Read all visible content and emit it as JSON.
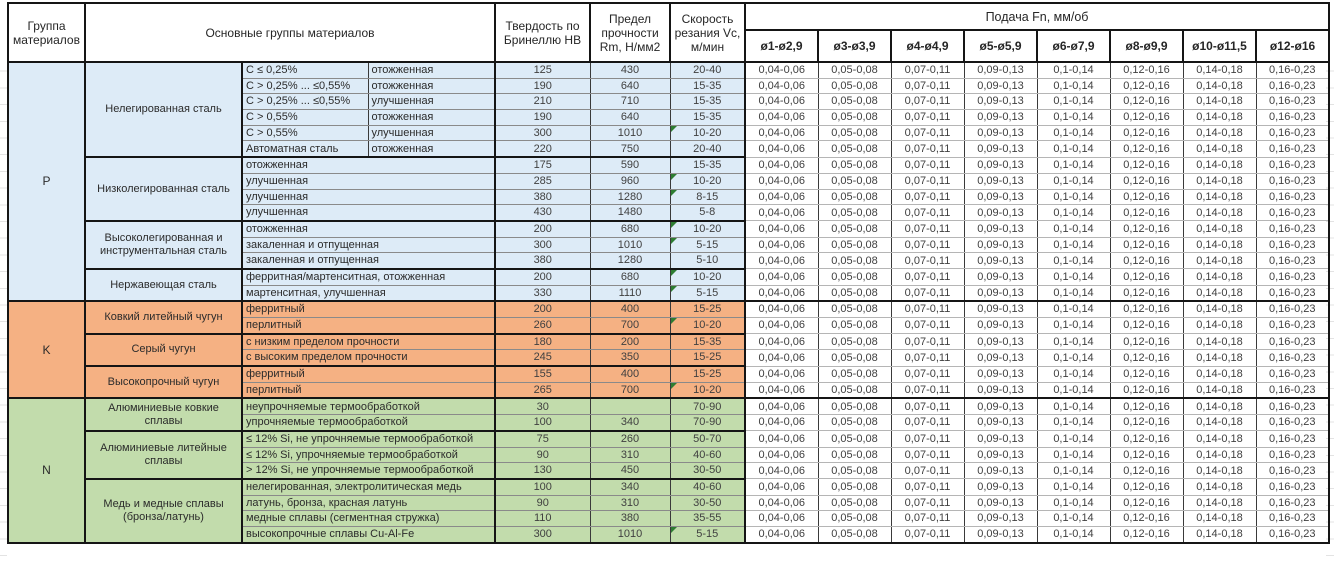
{
  "header": {
    "col_group": "Группа материалов",
    "col_main": "Основные группы материалов",
    "col_hardness": "Твердость по Бринеллю HB",
    "col_strength": "Предел прочности Rm, Н/мм2",
    "col_speed": "Скорость резания Vc, м/мин",
    "col_feed": "Подача Fn, мм/об",
    "diameters": [
      "ø1-ø2,9",
      "ø3-ø3,9",
      "ø4-ø4,9",
      "ø5-ø5,9",
      "ø6-ø7,9",
      "ø8-ø9,9",
      "ø10-ø11,5",
      "ø12-ø16"
    ]
  },
  "feed_values": [
    "0,04-0,06",
    "0,05-0,08",
    "0,07-0,11",
    "0,09-0,13",
    "0,1-0,14",
    "0,12-0,16",
    "0,14-0,18",
    "0,16-0,23"
  ],
  "colors": {
    "group_p": "#DDEBF7",
    "group_k": "#F5B183",
    "group_n": "#C2DCAC",
    "comment_marker": "#2E7D32"
  },
  "groups": [
    {
      "code": "P",
      "color_key": "group_p",
      "subgroups": [
        {
          "name": "Нелегированная сталь",
          "rows": [
            {
              "spec": "C ≤ 0,25%",
              "state": "отожженная",
              "hb": "125",
              "rm": "430",
              "vc": "20-40",
              "mark": false
            },
            {
              "spec": "C > 0,25% ... ≤0,55%",
              "state": "отожженная",
              "hb": "190",
              "rm": "640",
              "vc": "15-35",
              "mark": false
            },
            {
              "spec": "C > 0,25% ... ≤0,55%",
              "state": "улучшенная",
              "hb": "210",
              "rm": "710",
              "vc": "15-35",
              "mark": false
            },
            {
              "spec": "C > 0,55%",
              "state": "отожженная",
              "hb": "190",
              "rm": "640",
              "vc": "15-35",
              "mark": false
            },
            {
              "spec": "C > 0,55%",
              "state": "улучшенная",
              "hb": "300",
              "rm": "1010",
              "vc": "10-20",
              "mark": true
            },
            {
              "spec": "Автоматная сталь",
              "state": "отожженная",
              "hb": "220",
              "rm": "750",
              "vc": "20-40",
              "mark": false
            }
          ]
        },
        {
          "name": "Низколегированная сталь",
          "rows": [
            {
              "desc": "отожженная",
              "hb": "175",
              "rm": "590",
              "vc": "15-35",
              "mark": false
            },
            {
              "desc": "улучшенная",
              "hb": "285",
              "rm": "960",
              "vc": "10-20",
              "mark": true
            },
            {
              "desc": "улучшенная",
              "hb": "380",
              "rm": "1280",
              "vc": "8-15",
              "mark": true
            },
            {
              "desc": "улучшенная",
              "hb": "430",
              "rm": "1480",
              "vc": "5-8",
              "mark": false
            }
          ]
        },
        {
          "name": "Высоколегированная и инструментальная сталь",
          "rows": [
            {
              "desc": "отожженная",
              "hb": "200",
              "rm": "680",
              "vc": "10-20",
              "mark": true
            },
            {
              "desc": "закаленная и отпущенная",
              "hb": "300",
              "rm": "1010",
              "vc": "5-15",
              "mark": true
            },
            {
              "desc": "закаленная и отпущенная",
              "hb": "380",
              "rm": "1280",
              "vc": "5-10",
              "mark": false
            }
          ]
        },
        {
          "name": "Нержавеющая сталь",
          "rows": [
            {
              "desc": "ферритная/мартенситная, отожженная",
              "hb": "200",
              "rm": "680",
              "vc": "10-20",
              "mark": true
            },
            {
              "desc": "мартенситная, улучшенная",
              "hb": "330",
              "rm": "1110",
              "vc": "5-15",
              "mark": true
            }
          ]
        }
      ]
    },
    {
      "code": "K",
      "color_key": "group_k",
      "subgroups": [
        {
          "name": "Ковкий литейный чугун",
          "rows": [
            {
              "desc": "ферритный",
              "hb": "200",
              "rm": "400",
              "vc": "15-25",
              "mark": false
            },
            {
              "desc": "перлитный",
              "hb": "260",
              "rm": "700",
              "vc": "10-20",
              "mark": true
            }
          ]
        },
        {
          "name": "Серый чугун",
          "rows": [
            {
              "desc": "с низким пределом прочности",
              "hb": "180",
              "rm": "200",
              "vc": "15-35",
              "mark": false
            },
            {
              "desc": "с высоким пределом прочности",
              "hb": "245",
              "rm": "350",
              "vc": "15-25",
              "mark": false
            }
          ]
        },
        {
          "name": "Высокопрочный чугун",
          "rows": [
            {
              "desc": "ферритный",
              "hb": "155",
              "rm": "400",
              "vc": "15-25",
              "mark": false
            },
            {
              "desc": "перлитный",
              "hb": "265",
              "rm": "700",
              "vc": "10-20",
              "mark": true
            }
          ]
        }
      ]
    },
    {
      "code": "N",
      "color_key": "group_n",
      "subgroups": [
        {
          "name": "Алюминиевые ковкие сплавы",
          "rows": [
            {
              "desc": "неупрочняемые термообработкой",
              "hb": "30",
              "rm": "",
              "vc": "70-90",
              "mark": false
            },
            {
              "desc": "упрочняемые термообработкой",
              "hb": "100",
              "rm": "340",
              "vc": "70-90",
              "mark": false
            }
          ]
        },
        {
          "name": "Алюминиевые литейные сплавы",
          "rows": [
            {
              "desc": "≤ 12% Si, не упрочняемые термообработкой",
              "hb": "75",
              "rm": "260",
              "vc": "50-70",
              "mark": false
            },
            {
              "desc": "≤ 12% Si, упрочняемые термообработкой",
              "hb": "90",
              "rm": "310",
              "vc": "40-60",
              "mark": false
            },
            {
              "desc": "> 12% Si, не упрочняемые термообработкой",
              "hb": "130",
              "rm": "450",
              "vc": "30-50",
              "mark": false
            }
          ]
        },
        {
          "name": "Медь и медные сплавы (бронза/латунь)",
          "rows": [
            {
              "desc": "нелегированная, электролитическая медь",
              "hb": "100",
              "rm": "340",
              "vc": "40-60",
              "mark": false
            },
            {
              "desc": "латунь, бронза, красная латунь",
              "hb": "90",
              "rm": "310",
              "vc": "30-50",
              "mark": false
            },
            {
              "desc": "медные сплавы (сегментная стружка)",
              "hb": "110",
              "rm": "380",
              "vc": "35-55",
              "mark": false
            },
            {
              "desc": "высокопрочные сплавы Cu-Al-Fe",
              "hb": "300",
              "rm": "1010",
              "vc": "5-15",
              "mark": true
            }
          ]
        }
      ]
    }
  ]
}
